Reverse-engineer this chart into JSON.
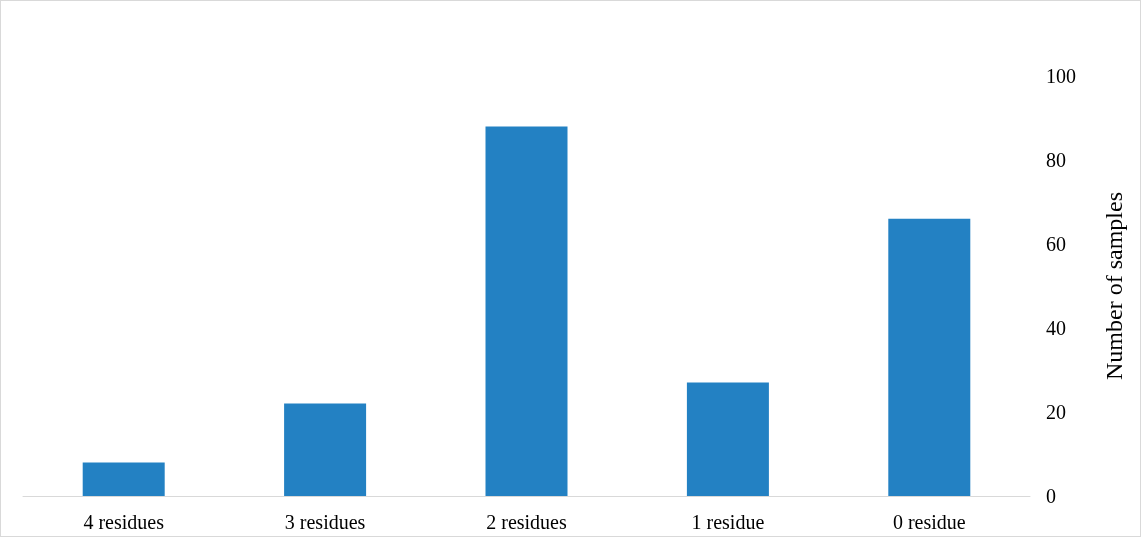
{
  "chart_data": {
    "type": "bar",
    "ylabel": "Number of samples",
    "categories": [
      "4 residues",
      "3 residues",
      "2 residues",
      "1 residue",
      "0 residue"
    ],
    "values": [
      8,
      22,
      88,
      27,
      66
    ],
    "color": "#2381c3",
    "ylim": [
      0,
      100
    ],
    "yticks": [
      0,
      20,
      40,
      60,
      80,
      100
    ],
    "grid": false
  }
}
